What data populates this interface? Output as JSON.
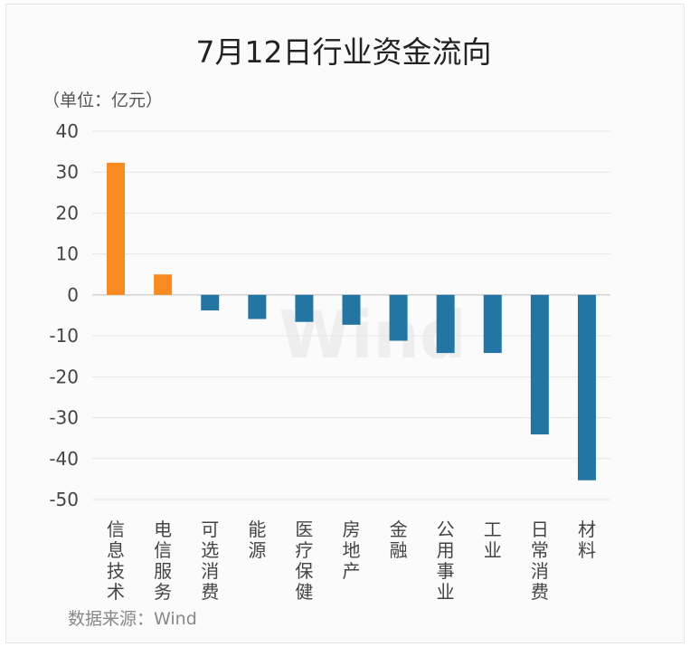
{
  "chart_data": {
    "type": "bar",
    "title": "7月12日行业资金流向",
    "unit_label": "（单位：亿元）",
    "categories": [
      "信息技术",
      "电信服务",
      "可选消费",
      "能源",
      "医疗保健",
      "房地产",
      "金融",
      "公用事业",
      "工业",
      "日常消费",
      "材料"
    ],
    "values": [
      32.3,
      5.0,
      -3.8,
      -5.9,
      -6.6,
      -7.3,
      -11.2,
      -14.2,
      -14.2,
      -34.1,
      -45.3
    ],
    "ylim": [
      -50,
      40
    ],
    "yticks": [
      40,
      30,
      20,
      10,
      0,
      -10,
      -20,
      -30,
      -40,
      -50
    ],
    "grid": true,
    "legend": "none",
    "colors": {
      "positive": "#f78a20",
      "negative": "#2376a3"
    }
  },
  "watermark": "Wind",
  "source": "数据来源：Wind"
}
